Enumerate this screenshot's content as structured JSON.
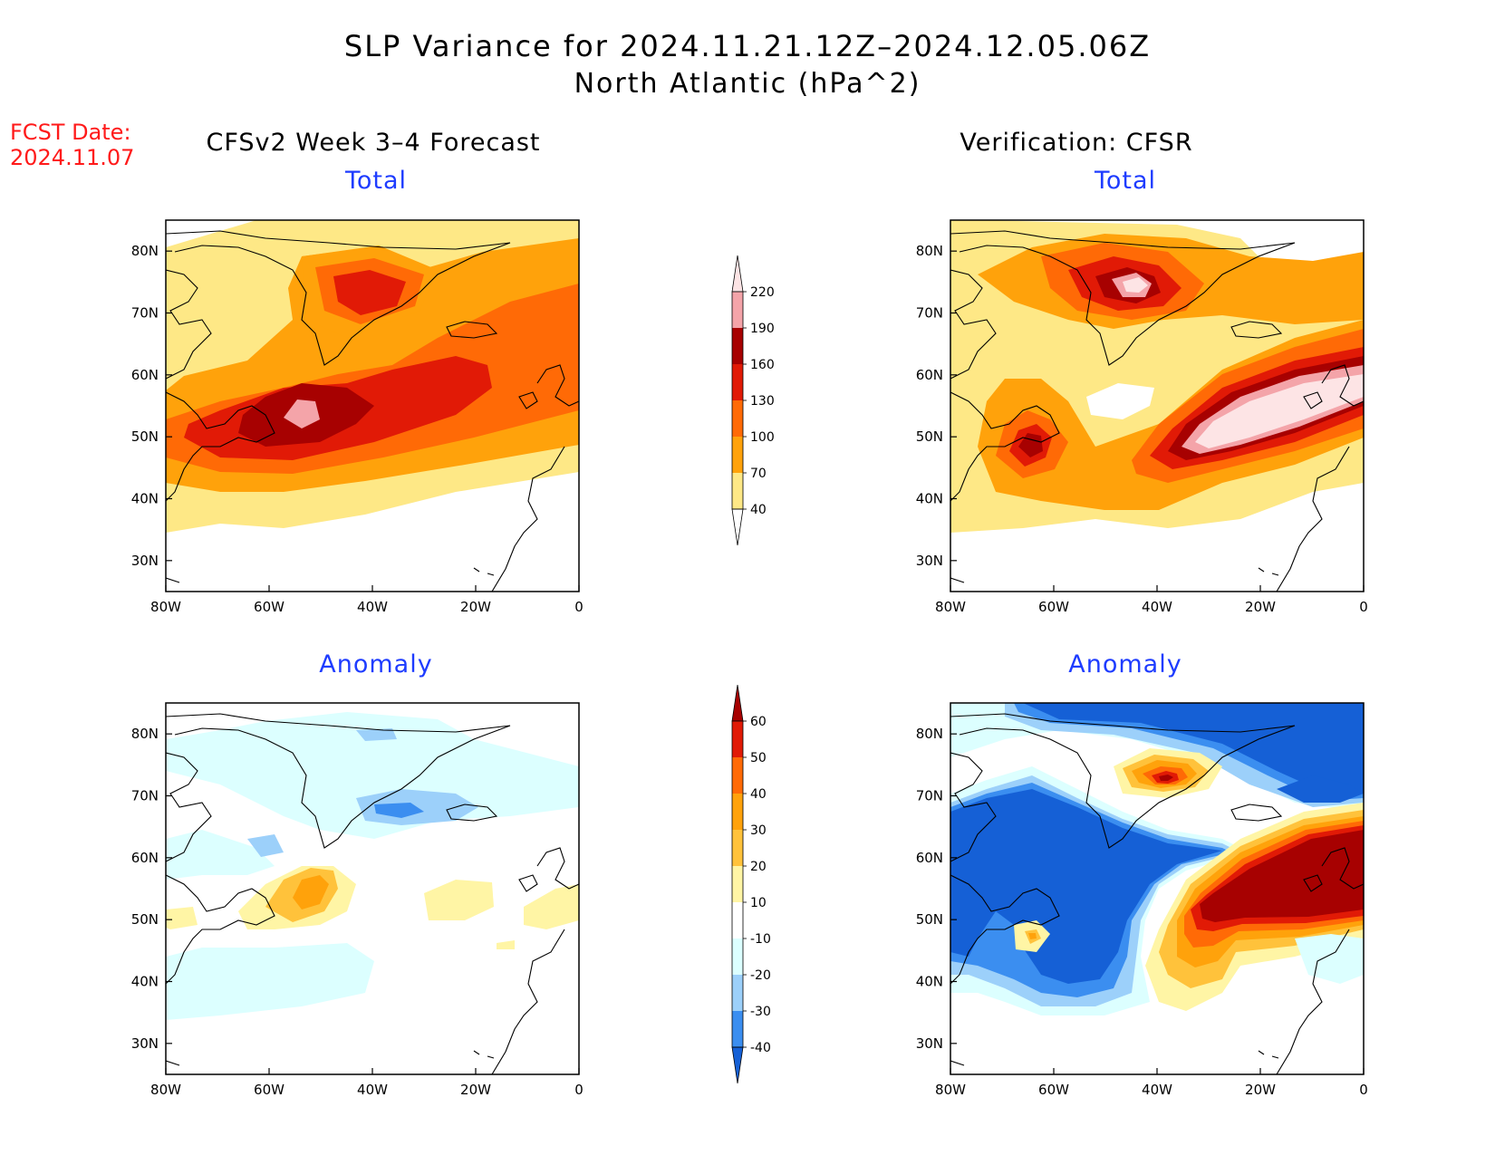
{
  "title": {
    "line1": "SLP Variance for 2024.11.21.12Z–2024.12.05.06Z",
    "line2": "North Atlantic (hPa^2)"
  },
  "fcst_date": {
    "label": "FCST Date:",
    "value": "2024.11.07"
  },
  "columns": {
    "left": "CFSv2 Week 3–4 Forecast",
    "right": "Verification: CFSR"
  },
  "panel_titles": {
    "total": "Total",
    "anomaly": "Anomaly"
  },
  "axes": {
    "x_ticks": [
      "80W",
      "60W",
      "40W",
      "20W",
      "0"
    ],
    "y_ticks": [
      "80N",
      "70N",
      "60N",
      "50N",
      "40N",
      "30N"
    ],
    "lon_range": [
      -80,
      0
    ],
    "lat_range": [
      25,
      85
    ]
  },
  "colorbars": {
    "total": {
      "levels": [
        "40",
        "70",
        "100",
        "130",
        "160",
        "190",
        "220"
      ],
      "colors": [
        "#fee886",
        "#ffa20b",
        "#ff6a06",
        "#e11a06",
        "#a70101",
        "#f4a4a9",
        "#fde4e5"
      ]
    },
    "anomaly": {
      "levels": [
        "60",
        "50",
        "40",
        "30",
        "20",
        "10",
        "-10",
        "-20",
        "-30",
        "-40"
      ],
      "colors": [
        "#a70101",
        "#e11a06",
        "#ff6a06",
        "#ffa20b",
        "#ffc23b",
        "#fff5a5",
        "#ffffff",
        "#dcffff",
        "#9cd0fa",
        "#3b8ef0",
        "#1560d6"
      ]
    }
  }
}
